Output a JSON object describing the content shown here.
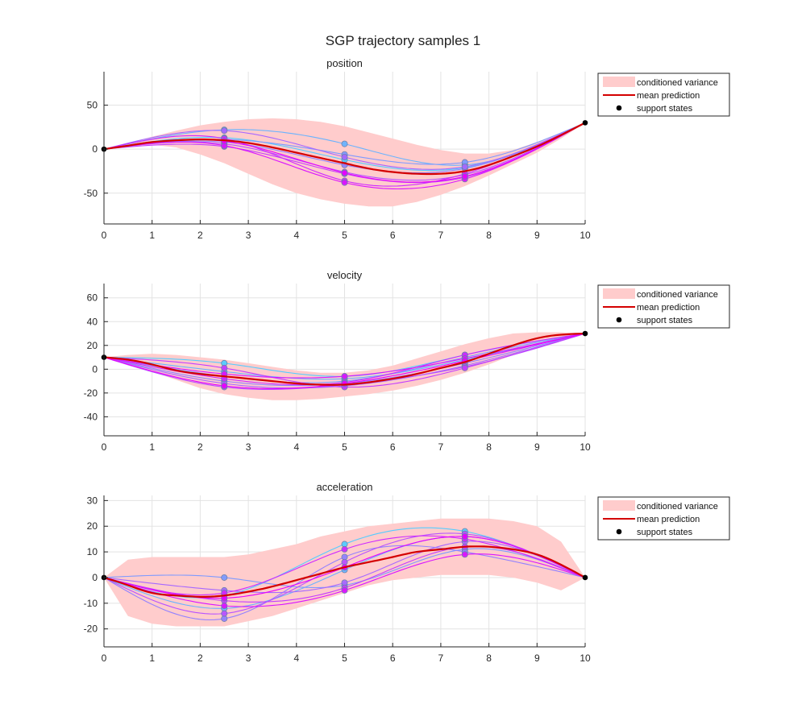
{
  "figure": {
    "title": "SGP trajectory samples 1"
  },
  "legend": {
    "variance_label": "conditioned variance",
    "mean_label": "mean prediction",
    "support_label": "support states"
  },
  "colors": {
    "band": "#ffcccc",
    "mean": "#d40000",
    "support": "#000000",
    "grid": "#e3e3e3",
    "sample_gradient": [
      "#55ccff",
      "#b15cff",
      "#e600ff"
    ]
  },
  "chart_data": [
    {
      "type": "line",
      "title": "position",
      "xlim": [
        0,
        10
      ],
      "ylim": [
        -85,
        88
      ],
      "xticks": [
        0,
        1,
        2,
        3,
        4,
        5,
        6,
        7,
        8,
        9,
        10
      ],
      "yticks": [
        -50,
        0,
        50
      ],
      "grid": true,
      "legend_position": "outside-top-right",
      "support_states": {
        "x": [
          0,
          10
        ],
        "y": [
          0,
          30
        ]
      },
      "mean": {
        "x": [
          0,
          0.5,
          1,
          1.5,
          2,
          2.5,
          3,
          3.5,
          4,
          4.5,
          5,
          5.5,
          6,
          6.5,
          7,
          7.5,
          8,
          8.5,
          9,
          9.5,
          10
        ],
        "y": [
          0,
          4,
          8,
          10,
          11,
          10,
          7,
          2,
          -4,
          -10,
          -16,
          -22,
          -26,
          -28,
          -28,
          -25,
          -18,
          -8,
          3,
          16,
          30
        ]
      },
      "band": {
        "x": [
          0,
          0.5,
          1,
          1.5,
          2,
          2.5,
          3,
          3.5,
          4,
          4.5,
          5,
          5.5,
          6,
          6.5,
          7,
          7.5,
          8,
          8.5,
          9,
          9.5,
          10
        ],
        "lower": [
          0,
          3,
          5,
          2,
          -6,
          -16,
          -28,
          -40,
          -50,
          -57,
          -62,
          -65,
          -65,
          -60,
          -52,
          -42,
          -30,
          -17,
          -4,
          12,
          30
        ],
        "upper": [
          0,
          7,
          14,
          21,
          27,
          31,
          34,
          35,
          34,
          31,
          26,
          19,
          12,
          5,
          -1,
          -5,
          -5,
          -1,
          8,
          19,
          30
        ]
      },
      "samples": [
        {
          "knots": [
            0,
            13,
            -12,
            -21,
            30
          ]
        },
        {
          "knots": [
            0,
            22,
            6,
            -18,
            30
          ]
        },
        {
          "knots": [
            0,
            11,
            -6,
            -15,
            30
          ]
        },
        {
          "knots": [
            0,
            8,
            -18,
            -22,
            30
          ]
        },
        {
          "knots": [
            0,
            21,
            -9,
            -20,
            30
          ]
        },
        {
          "knots": [
            0,
            6,
            -26,
            -29,
            30
          ]
        },
        {
          "knots": [
            0,
            3,
            -28,
            -32,
            30
          ]
        },
        {
          "knots": [
            0,
            12,
            -36,
            -28,
            30
          ]
        },
        {
          "knots": [
            0,
            4,
            -38,
            -34,
            30
          ]
        },
        {
          "knots": [
            0,
            9,
            -27,
            -31,
            30
          ]
        }
      ]
    },
    {
      "type": "line",
      "title": "velocity",
      "xlim": [
        0,
        10
      ],
      "ylim": [
        -56,
        72
      ],
      "xticks": [
        0,
        1,
        2,
        3,
        4,
        5,
        6,
        7,
        8,
        9,
        10
      ],
      "yticks": [
        -40,
        -20,
        0,
        20,
        40,
        60
      ],
      "grid": true,
      "legend_position": "outside-top-right",
      "support_states": {
        "x": [
          0,
          10
        ],
        "y": [
          10,
          30
        ]
      },
      "mean": {
        "x": [
          0,
          0.5,
          1,
          1.5,
          2,
          2.5,
          3,
          3.5,
          4,
          4.5,
          5,
          5.5,
          6,
          6.5,
          7,
          7.5,
          8,
          8.5,
          9,
          9.5,
          10
        ],
        "y": [
          10,
          8,
          4,
          -1,
          -4,
          -6,
          -8,
          -10,
          -12,
          -13,
          -13,
          -11,
          -8,
          -4,
          1,
          6,
          13,
          20,
          26,
          29,
          30
        ]
      },
      "band": {
        "x": [
          0,
          0.5,
          1,
          1.5,
          2,
          2.5,
          3,
          3.5,
          4,
          4.5,
          5,
          5.5,
          6,
          6.5,
          7,
          7.5,
          8,
          8.5,
          9,
          9.5,
          10
        ],
        "lower": [
          10,
          5,
          -2,
          -9,
          -16,
          -21,
          -24,
          -26,
          -26,
          -25,
          -23,
          -21,
          -18,
          -14,
          -9,
          -3,
          4,
          12,
          20,
          26,
          30
        ],
        "upper": [
          10,
          12,
          13,
          12,
          10,
          8,
          5,
          2,
          -1,
          -3,
          -3,
          -1,
          3,
          9,
          15,
          21,
          26,
          30,
          31,
          31,
          30
        ]
      },
      "samples": [
        {
          "knots": [
            10,
            5,
            -6,
            12,
            30
          ]
        },
        {
          "knots": [
            10,
            -2,
            -8,
            8,
            30
          ]
        },
        {
          "knots": [
            10,
            -6,
            -10,
            10,
            30
          ]
        },
        {
          "knots": [
            10,
            -10,
            -12,
            5,
            30
          ]
        },
        {
          "knots": [
            10,
            -12,
            -14,
            3,
            30
          ]
        },
        {
          "knots": [
            10,
            -15,
            -13,
            2,
            30
          ]
        },
        {
          "knots": [
            10,
            1,
            -15,
            1,
            30
          ]
        },
        {
          "knots": [
            10,
            -8,
            -11,
            12,
            30
          ]
        },
        {
          "knots": [
            10,
            -4,
            -6,
            9,
            30
          ]
        },
        {
          "knots": [
            10,
            -14,
            -12,
            7,
            30
          ]
        }
      ]
    },
    {
      "type": "line",
      "title": "acceleration",
      "xlim": [
        0,
        10
      ],
      "ylim": [
        -27,
        32
      ],
      "xticks": [
        0,
        1,
        2,
        3,
        4,
        5,
        6,
        7,
        8,
        9,
        10
      ],
      "yticks": [
        -20,
        -10,
        0,
        10,
        20,
        30
      ],
      "grid": true,
      "legend_position": "outside-top-right",
      "support_states": {
        "x": [
          0,
          10
        ],
        "y": [
          0,
          0
        ]
      },
      "mean": {
        "x": [
          0,
          0.5,
          1,
          1.5,
          2,
          2.5,
          3,
          3.5,
          4,
          4.5,
          5,
          5.5,
          6,
          6.5,
          7,
          7.5,
          8,
          8.5,
          9,
          9.5,
          10
        ],
        "y": [
          0,
          -3,
          -6,
          -7,
          -7.5,
          -7,
          -5.5,
          -3.5,
          -1,
          1.5,
          4,
          6,
          8,
          10,
          11,
          12,
          12,
          11,
          9,
          5,
          0
        ]
      },
      "band": {
        "x": [
          0,
          0.5,
          1,
          1.5,
          2,
          2.5,
          3,
          3.5,
          4,
          4.5,
          5,
          5.5,
          6,
          6.5,
          7,
          7.5,
          8,
          8.5,
          9,
          9.5,
          10
        ],
        "lower": [
          0,
          -15,
          -18,
          -19,
          -19,
          -19,
          -17,
          -15,
          -12,
          -9,
          -6,
          -3,
          -1,
          0,
          1,
          1,
          1,
          0,
          -2,
          -5,
          0
        ],
        "upper": [
          0,
          7,
          8,
          8,
          8,
          8,
          9,
          11,
          13,
          16,
          18,
          20,
          21,
          22,
          23,
          23,
          23,
          22,
          20,
          14,
          0
        ]
      },
      "samples": [
        {
          "knots": [
            0,
            -7,
            13,
            18,
            0
          ]
        },
        {
          "knots": [
            0,
            -12,
            3,
            16,
            0
          ]
        },
        {
          "knots": [
            0,
            0,
            -3,
            11,
            0
          ]
        },
        {
          "knots": [
            0,
            -16,
            8,
            10,
            0
          ]
        },
        {
          "knots": [
            0,
            -5,
            -2,
            14,
            0
          ]
        },
        {
          "knots": [
            0,
            -14,
            6,
            17,
            0
          ]
        },
        {
          "knots": [
            0,
            -9,
            -4,
            12,
            0
          ]
        },
        {
          "knots": [
            0,
            -6,
            11,
            15,
            0
          ]
        },
        {
          "knots": [
            0,
            -11,
            -5,
            9,
            0
          ]
        },
        {
          "knots": [
            0,
            -8,
            4,
            16,
            0
          ]
        }
      ]
    }
  ]
}
